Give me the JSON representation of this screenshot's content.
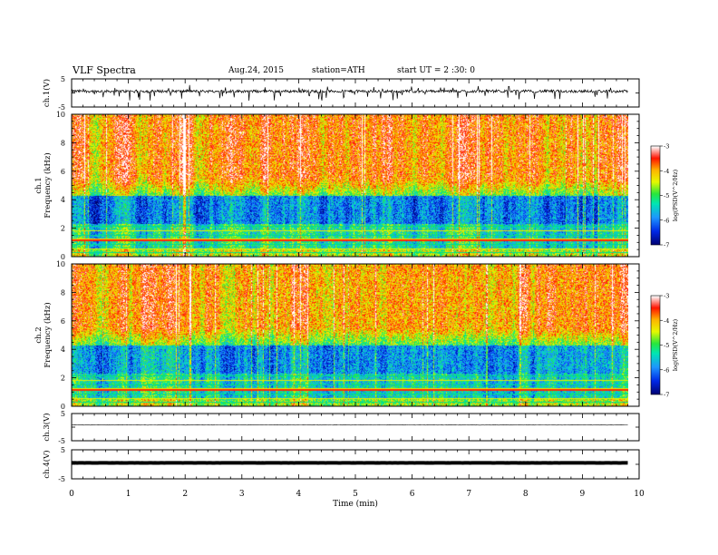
{
  "header": {
    "title": "VLF  Spectra",
    "date": "Aug.24, 2015",
    "station": "station=ATH",
    "start": "start  UT  =   2  :30: 0"
  },
  "chart_data": [
    {
      "id": "ch1_waveform",
      "type": "line",
      "ylabel": "ch.1(V)",
      "ylim": [
        -5,
        5
      ],
      "yticks": [
        "5",
        "-5"
      ],
      "xlim": [
        0,
        10
      ],
      "note": "dense noisy waveform centered near 0 V, spikes to about -3.5 V"
    },
    {
      "id": "ch1_spectrogram",
      "type": "heatmap",
      "ylabel": "ch.1\nFrequency  (kHz)",
      "ylim": [
        0,
        10
      ],
      "yticks": [
        "0",
        "2",
        "4",
        "6",
        "8",
        "10"
      ],
      "xlim": [
        0,
        10
      ],
      "colorbar": {
        "label": "log(PSD(V^2/Hz)",
        "range": [
          -7,
          -3
        ],
        "ticks": [
          "-3",
          "-4",
          "-5",
          "-6",
          "-7"
        ]
      }
    },
    {
      "id": "ch2_spectrogram",
      "type": "heatmap",
      "ylabel": "ch.2\nFrequency  (kHz)",
      "ylim": [
        0,
        10
      ],
      "yticks": [
        "0",
        "2",
        "4",
        "6",
        "8",
        "10"
      ],
      "xlim": [
        0,
        10
      ],
      "colorbar": {
        "label": "log(PSD(V^2/Hz)",
        "range": [
          -7,
          -3
        ],
        "ticks": [
          "-3",
          "-4",
          "-5",
          "-6",
          "-7"
        ]
      }
    },
    {
      "id": "ch3_waveform",
      "type": "line",
      "ylabel": "ch.3(V)",
      "ylim": [
        -5,
        5
      ],
      "yticks": [
        "5",
        "-5"
      ],
      "xlim": [
        0,
        10
      ],
      "note": "flat trace near 0 V"
    },
    {
      "id": "ch4_waveform",
      "type": "line",
      "ylabel": "ch.4(V)",
      "ylim": [
        -5,
        5
      ],
      "yticks": [
        "5",
        "-5"
      ],
      "xlim": [
        0,
        10
      ],
      "note": "thick flat trace near 0 V"
    }
  ],
  "xaxis": {
    "label": "Time  (min)",
    "ticks": [
      "0",
      "1",
      "2",
      "3",
      "4",
      "5",
      "6",
      "7",
      "8",
      "9",
      "10"
    ]
  },
  "colors": {
    "low": "#000080",
    "mid_low": "#1e90ff",
    "mid": "#00e070",
    "mid_high": "#ffff00",
    "high": "#ff0000",
    "top": "#ffffff"
  }
}
